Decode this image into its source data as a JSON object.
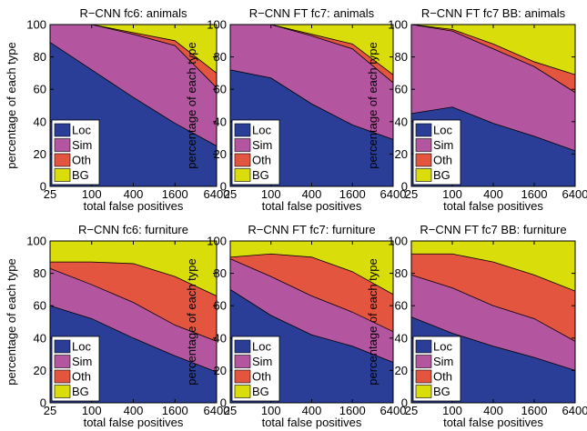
{
  "figure": {
    "xlabel": "total false positives",
    "ylabel": "percentage of each type"
  },
  "chart_data": [
    {
      "type": "area",
      "title": "R−CNN fc6: animals",
      "x": [
        25,
        100,
        400,
        1600,
        6400
      ],
      "xscale": "log",
      "xlim": [
        25,
        6400
      ],
      "ylim": [
        0,
        100
      ],
      "xlabel": "total false positives",
      "ylabel": "percentage of each type",
      "legend_position": "lower-left",
      "series": [
        {
          "name": "Loc",
          "color": "#2a3e97",
          "values": [
            89,
            72,
            55,
            39,
            25
          ]
        },
        {
          "name": "Sim",
          "color": "#b455a0",
          "values": [
            11,
            28,
            39,
            48,
            36
          ]
        },
        {
          "name": "Oth",
          "color": "#e3553f",
          "values": [
            0,
            0,
            1,
            3,
            9
          ]
        },
        {
          "name": "BG",
          "color": "#d9dd0a",
          "values": [
            0,
            0,
            5,
            10,
            30
          ]
        }
      ]
    },
    {
      "type": "area",
      "title": "R−CNN FT fc7: animals",
      "x": [
        25,
        100,
        400,
        1600,
        6400
      ],
      "xscale": "log",
      "xlim": [
        25,
        6400
      ],
      "ylim": [
        0,
        100
      ],
      "xlabel": "total false positives",
      "ylabel": "percentage of each type",
      "legend_position": "lower-left",
      "series": [
        {
          "name": "Loc",
          "color": "#2a3e97",
          "values": [
            72,
            67,
            51,
            38,
            29
          ]
        },
        {
          "name": "Sim",
          "color": "#b455a0",
          "values": [
            28,
            33,
            42,
            47,
            35
          ]
        },
        {
          "name": "Oth",
          "color": "#e3553f",
          "values": [
            0,
            0,
            1,
            3,
            5
          ]
        },
        {
          "name": "BG",
          "color": "#d9dd0a",
          "values": [
            0,
            0,
            6,
            12,
            31
          ]
        }
      ]
    },
    {
      "type": "area",
      "title": "R−CNN FT fc7 BB: animals",
      "x": [
        25,
        100,
        400,
        1600,
        6400
      ],
      "xscale": "log",
      "xlim": [
        25,
        6400
      ],
      "ylim": [
        0,
        100
      ],
      "xlabel": "total false positives",
      "ylabel": "percentage of each type",
      "legend_position": "lower-left",
      "series": [
        {
          "name": "Loc",
          "color": "#2a3e97",
          "values": [
            45,
            49,
            39,
            31,
            22
          ]
        },
        {
          "name": "Sim",
          "color": "#b455a0",
          "values": [
            55,
            47,
            46,
            43,
            36
          ]
        },
        {
          "name": "Oth",
          "color": "#e3553f",
          "values": [
            0,
            1,
            3,
            3,
            11
          ]
        },
        {
          "name": "BG",
          "color": "#d9dd0a",
          "values": [
            0,
            3,
            12,
            23,
            31
          ]
        }
      ]
    },
    {
      "type": "area",
      "title": "R−CNN fc6: furniture",
      "x": [
        25,
        100,
        400,
        1600,
        6400
      ],
      "xscale": "log",
      "xlim": [
        25,
        6400
      ],
      "ylim": [
        0,
        100
      ],
      "xlabel": "total false positives",
      "ylabel": "percentage of each type",
      "legend_position": "lower-left",
      "series": [
        {
          "name": "Loc",
          "color": "#2a3e97",
          "values": [
            60,
            52,
            40,
            29,
            19
          ]
        },
        {
          "name": "Sim",
          "color": "#b455a0",
          "values": [
            23,
            21,
            22,
            19,
            19
          ]
        },
        {
          "name": "Oth",
          "color": "#e3553f",
          "values": [
            4,
            14,
            24,
            30,
            28
          ]
        },
        {
          "name": "BG",
          "color": "#d9dd0a",
          "values": [
            13,
            13,
            14,
            22,
            34
          ]
        }
      ]
    },
    {
      "type": "area",
      "title": "R−CNN FT fc7: furniture",
      "x": [
        25,
        100,
        400,
        1600,
        6400
      ],
      "xscale": "log",
      "xlim": [
        25,
        6400
      ],
      "ylim": [
        0,
        100
      ],
      "xlabel": "total false positives",
      "ylabel": "percentage of each type",
      "legend_position": "lower-left",
      "series": [
        {
          "name": "Loc",
          "color": "#2a3e97",
          "values": [
            70,
            54,
            42,
            35,
            25
          ]
        },
        {
          "name": "Sim",
          "color": "#b455a0",
          "values": [
            19,
            24,
            24,
            21,
            19
          ]
        },
        {
          "name": "Oth",
          "color": "#e3553f",
          "values": [
            1,
            14,
            24,
            25,
            23
          ]
        },
        {
          "name": "BG",
          "color": "#d9dd0a",
          "values": [
            10,
            8,
            10,
            19,
            33
          ]
        }
      ]
    },
    {
      "type": "area",
      "title": "R−CNN FT fc7 BB: furniture",
      "x": [
        25,
        100,
        400,
        1600,
        6400
      ],
      "xscale": "log",
      "xlim": [
        25,
        6400
      ],
      "ylim": [
        0,
        100
      ],
      "xlabel": "total false positives",
      "ylabel": "percentage of each type",
      "legend_position": "lower-left",
      "series": [
        {
          "name": "Loc",
          "color": "#2a3e97",
          "values": [
            53,
            43,
            35,
            28,
            20
          ]
        },
        {
          "name": "Sim",
          "color": "#b455a0",
          "values": [
            26,
            28,
            25,
            24,
            18
          ]
        },
        {
          "name": "Oth",
          "color": "#e3553f",
          "values": [
            13,
            21,
            27,
            27,
            31
          ]
        },
        {
          "name": "BG",
          "color": "#d9dd0a",
          "values": [
            8,
            8,
            13,
            21,
            31
          ]
        }
      ]
    }
  ]
}
